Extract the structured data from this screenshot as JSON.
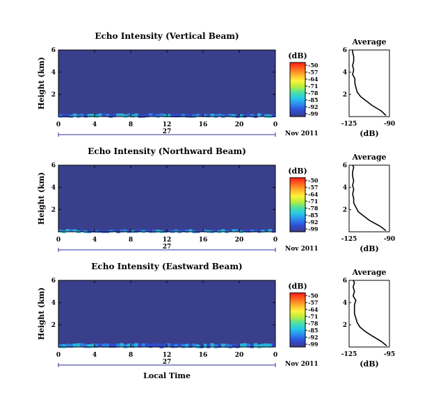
{
  "chart_data": [
    {
      "type": "heatmap",
      "title": "Echo Intensity (Vertical Beam)",
      "ylabel": "Height (km)",
      "xlabel": "",
      "x_ticks": [
        "0",
        "4",
        "8",
        "12",
        "16",
        "20",
        "0"
      ],
      "y_ticks": [
        "6",
        "4",
        "2"
      ],
      "xlim": [
        0,
        24
      ],
      "ylim": [
        0,
        6
      ],
      "date_day": "27",
      "date_month_year": "Nov 2011",
      "colorbar": {
        "label": "(dB)",
        "ticks": [
          "-50",
          "-57",
          "-64",
          "-71",
          "-78",
          "-85",
          "-92",
          "-99"
        ],
        "range": [
          -99,
          -50
        ]
      },
      "background_db": -99,
      "echo_band_top_km": 0.3,
      "average_panel": {
        "title": "Average",
        "xlabel": "(dB)",
        "x_ticks": [
          "-125",
          "-90"
        ],
        "xlim": [
          -125,
          -90
        ],
        "ylim": [
          0,
          6
        ],
        "y_ticks": [
          "6",
          "4",
          "2"
        ],
        "profile": {
          "height_km": [
            0.1,
            0.5,
            1.0,
            1.4,
            1.8,
            2.2,
            2.6,
            3.0,
            3.4,
            3.8,
            4.2,
            4.6,
            5.0,
            5.4,
            5.8,
            6.0
          ],
          "db": [
            -93,
            -97,
            -105,
            -110,
            -115,
            -118,
            -119,
            -120,
            -120,
            -122,
            -121,
            -122,
            -121,
            -121,
            -122,
            -122
          ]
        }
      }
    },
    {
      "type": "heatmap",
      "title": "Echo Intensity (Northward Beam)",
      "ylabel": "Height (km)",
      "xlabel": "",
      "x_ticks": [
        "0",
        "4",
        "8",
        "12",
        "16",
        "20",
        "0"
      ],
      "y_ticks": [
        "6",
        "4",
        "2"
      ],
      "xlim": [
        0,
        24
      ],
      "ylim": [
        0,
        6
      ],
      "date_day": "27",
      "date_month_year": "Nov 2011",
      "colorbar": {
        "label": "(dB)",
        "ticks": [
          "-50",
          "-57",
          "-64",
          "-71",
          "-78",
          "-85",
          "-92",
          "-99"
        ],
        "range": [
          -99,
          -50
        ]
      },
      "background_db": -99,
      "echo_band_top_km": 0.25,
      "average_panel": {
        "title": "Average",
        "xlabel": "(dB)",
        "x_ticks": [
          "-125",
          "-90"
        ],
        "xlim": [
          -125,
          -90
        ],
        "ylim": [
          0,
          6
        ],
        "y_ticks": [
          "6",
          "4",
          "2"
        ],
        "profile": {
          "height_km": [
            0.1,
            0.5,
            1.0,
            1.4,
            1.8,
            2.2,
            2.6,
            3.0,
            3.4,
            3.8,
            4.2,
            4.6,
            5.0,
            5.4,
            5.8,
            6.0
          ],
          "db": [
            -93,
            -98,
            -107,
            -112,
            -117,
            -119,
            -121,
            -121,
            -122,
            -121,
            -122,
            -121,
            -122,
            -122,
            -121,
            -122
          ]
        }
      }
    },
    {
      "type": "heatmap",
      "title": "Echo Intensity (Eastward Beam)",
      "ylabel": "Height (km)",
      "xlabel": "Local Time",
      "x_ticks": [
        "0",
        "4",
        "8",
        "12",
        "16",
        "20",
        "0"
      ],
      "y_ticks": [
        "6",
        "4",
        "2"
      ],
      "xlim": [
        0,
        24
      ],
      "ylim": [
        0,
        6
      ],
      "date_day": "27",
      "date_month_year": "Nov 2011",
      "colorbar": {
        "label": "(dB)",
        "ticks": [
          "-50",
          "-57",
          "-64",
          "-71",
          "-78",
          "-85",
          "-92",
          "-99"
        ],
        "range": [
          -99,
          -50
        ]
      },
      "background_db": -99,
      "echo_band_top_km": 0.35,
      "average_panel": {
        "title": "Average",
        "xlabel": "(dB)",
        "x_ticks": [
          "-125",
          "-95"
        ],
        "xlim": [
          -125,
          -95
        ],
        "ylim": [
          0,
          6
        ],
        "y_ticks": [
          "6",
          "4",
          "2"
        ],
        "profile": {
          "height_km": [
            0.1,
            0.5,
            1.0,
            1.4,
            1.8,
            2.2,
            2.6,
            3.0,
            3.4,
            3.8,
            4.2,
            4.6,
            5.0,
            5.4,
            5.8,
            6.0
          ],
          "db": [
            -97,
            -101,
            -108,
            -113,
            -117,
            -119,
            -120,
            -121,
            -121,
            -121,
            -120,
            -122,
            -121,
            -122,
            -121,
            -122
          ]
        }
      }
    }
  ]
}
